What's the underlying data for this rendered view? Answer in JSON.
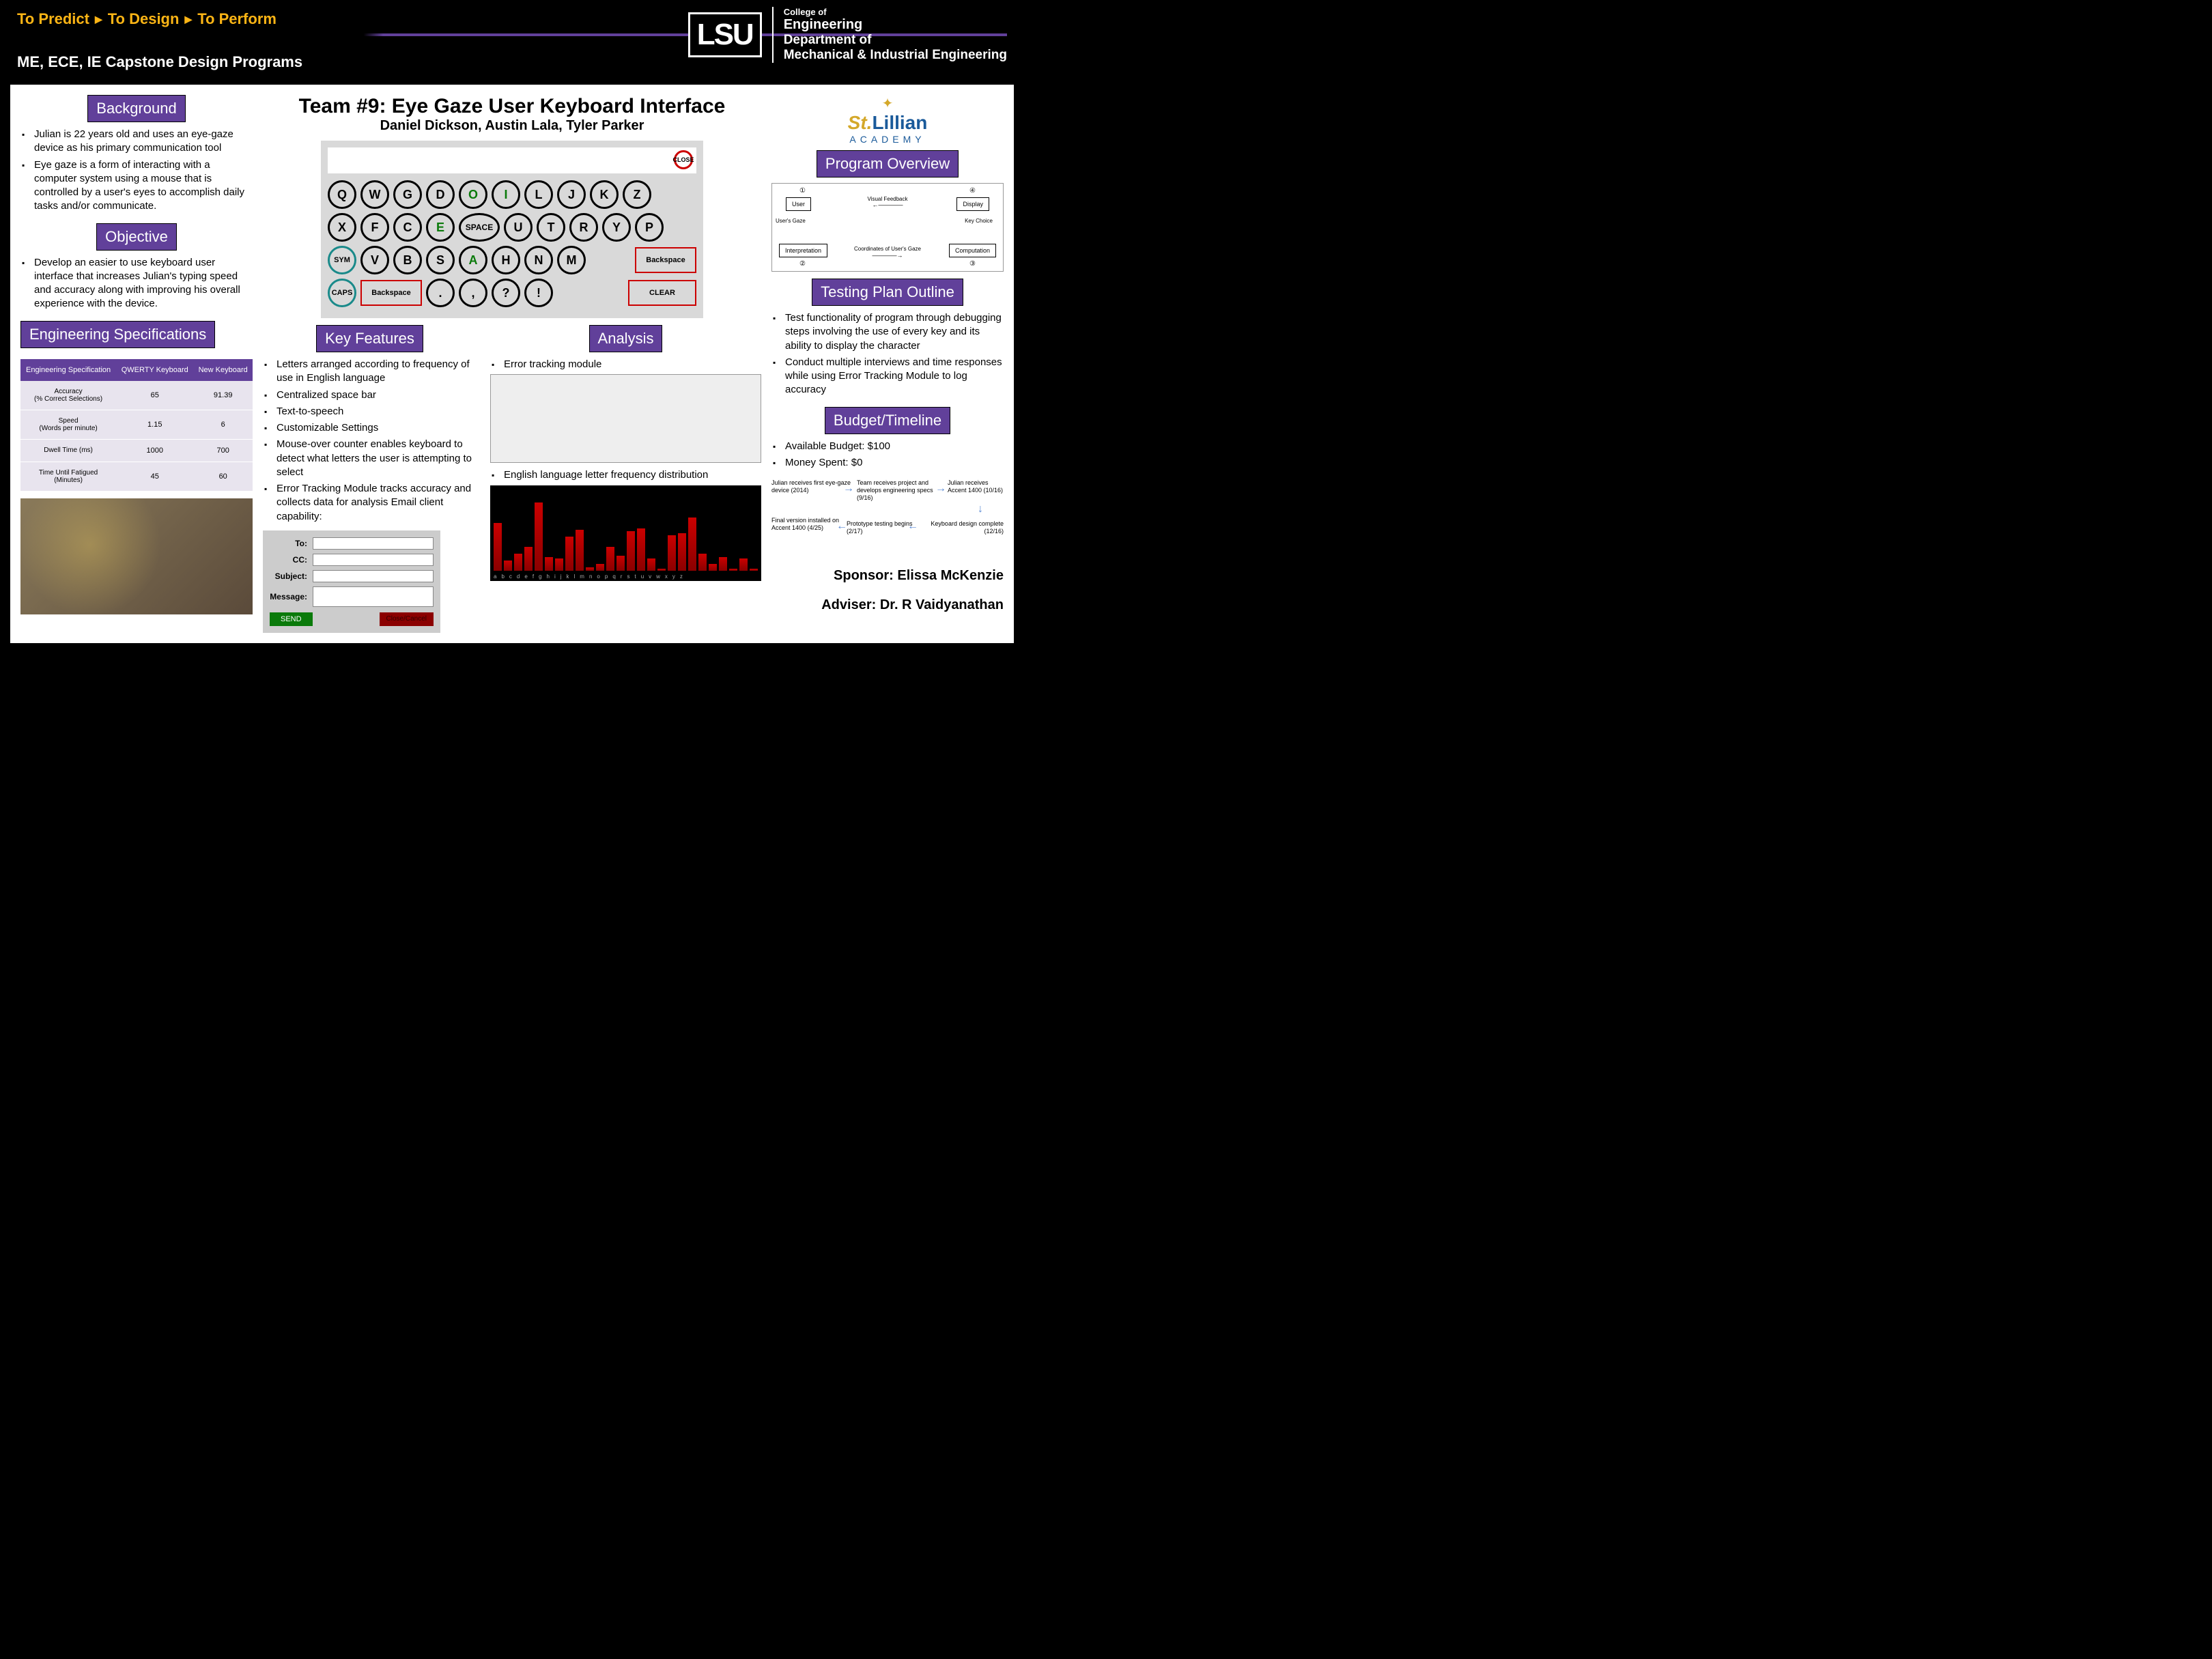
{
  "header": {
    "tagline_parts": [
      "To Predict",
      "To Design",
      "To Perform"
    ],
    "subhead": "ME, ECE, IE Capstone Design Programs",
    "lsu": "LSU",
    "college": "College of",
    "eng": "Engineering",
    "dept": "Department of",
    "mech": "Mechanical & Industrial Engineering"
  },
  "title": "Team #9: Eye Gaze User Keyboard Interface",
  "authors": "Daniel Dickson, Austin Lala, Tyler Parker",
  "sections": {
    "background": "Background",
    "objective": "Objective",
    "engspec": "Engineering Specifications",
    "keyfeatures": "Key Features",
    "analysis": "Analysis",
    "progover": "Program Overview",
    "testplan": "Testing Plan Outline",
    "budget": "Budget/Timeline"
  },
  "background_items": [
    "Julian is 22 years old and uses an eye-gaze device as his primary communication tool",
    "Eye gaze is a form of interacting with a computer system using a mouse that is controlled by a user's eyes to accomplish daily tasks and/or communicate."
  ],
  "objective_items": [
    "Develop an easier to use keyboard user interface that increases Julian's typing speed and accuracy along with improving his overall experience with the device."
  ],
  "spec_table": {
    "headers": [
      "Engineering Specification",
      "QWERTY Keyboard",
      "New Keyboard"
    ],
    "rows": [
      [
        "Accuracy\n(% Correct Selections)",
        "65",
        "91.39"
      ],
      [
        "Speed\n(Words per minute)",
        "1.15",
        "6"
      ],
      [
        "Dwell Time (ms)",
        "1000",
        "700"
      ],
      [
        "Time Until Fatigued\n(Minutes)",
        "45",
        "60"
      ]
    ]
  },
  "keyfeatures_items": [
    "Letters arranged according to frequency of use in English language",
    "Centralized space bar",
    "Text-to-speech",
    "Customizable Settings",
    "Mouse-over counter enables keyboard to detect what letters the user is attempting to select",
    "Error Tracking Module tracks accuracy and collects data for analysis Email client capability:"
  ],
  "analysis_items": [
    "Error tracking module",
    "English language letter frequency distribution"
  ],
  "testplan_items": [
    "Test functionality of program through debugging steps involving the use of every key and its ability to display the character",
    "Conduct multiple interviews and time responses while using Error Tracking Module to log accuracy"
  ],
  "budget_items": [
    "Available Budget: $100",
    "Money Spent: $0"
  ],
  "keyboard": {
    "close": "CLOSE",
    "row1": [
      "Q",
      "W",
      "G",
      "D",
      "O",
      "I",
      "L",
      "J",
      "K",
      "Z"
    ],
    "row2_left": [
      "X",
      "F",
      "C",
      "E"
    ],
    "row2_space": "SPACE",
    "row2_right": [
      "U",
      "T",
      "R",
      "Y",
      "P"
    ],
    "row3_sym": "SYM",
    "row3_keys": [
      "V",
      "B",
      "S",
      "A",
      "H",
      "N",
      "M"
    ],
    "row3_bk": "Backspace",
    "row4_caps": "CAPS",
    "row4_bk": "Backspace",
    "row4_punct": [
      ".",
      ",",
      "?",
      "!"
    ],
    "row4_clear": "CLEAR",
    "green_keys": [
      "O",
      "I",
      "E",
      "A"
    ]
  },
  "email": {
    "to": "To:",
    "cc": "CC:",
    "subject": "Subject:",
    "message": "Message:",
    "send": "SEND",
    "cancel": "Close/Cancel"
  },
  "freq_heights": [
    70,
    15,
    25,
    35,
    100,
    20,
    18,
    50,
    60,
    5,
    10,
    35,
    22,
    58,
    62,
    18,
    3,
    52,
    55,
    78,
    25,
    10,
    20,
    3,
    18,
    3
  ],
  "freq_letters": [
    "a",
    "b",
    "c",
    "d",
    "e",
    "f",
    "g",
    "h",
    "i",
    "j",
    "k",
    "l",
    "m",
    "n",
    "o",
    "p",
    "q",
    "r",
    "s",
    "t",
    "u",
    "v",
    "w",
    "x",
    "y",
    "z"
  ],
  "prog_diagram": {
    "user": "User",
    "display": "Display",
    "interp": "Interpretation",
    "comp": "Computation",
    "vf": "Visual Feedback",
    "ug": "User's Gaze",
    "coord": "Coordinates of User's Gaze",
    "kc": "Key Choice",
    "n1": "①",
    "n2": "②",
    "n3": "③",
    "n4": "④"
  },
  "timeline": {
    "t1": "Julian receives first eye-gaze device (2014)",
    "t2": "Team receives project and develops engineering specs (9/16)",
    "t3": "Julian receives Accent 1400 (10/16)",
    "t4": "Keyboard design complete (12/16)",
    "t5": "Prototype testing begins (2/17)",
    "t6": "Final version installed on Accent 1400 (4/25)"
  },
  "sponsor_logo": {
    "st": "St.",
    "lillian": "Lillian",
    "academy": "ACADEMY"
  },
  "sponsor": "Sponsor: Elissa McKenzie",
  "adviser": "Adviser: Dr. R Vaidyanathan",
  "colors": {
    "purple": "#61409a",
    "gold": "#fdb515",
    "teal": "#1a8a8a",
    "red": "#c00000"
  }
}
